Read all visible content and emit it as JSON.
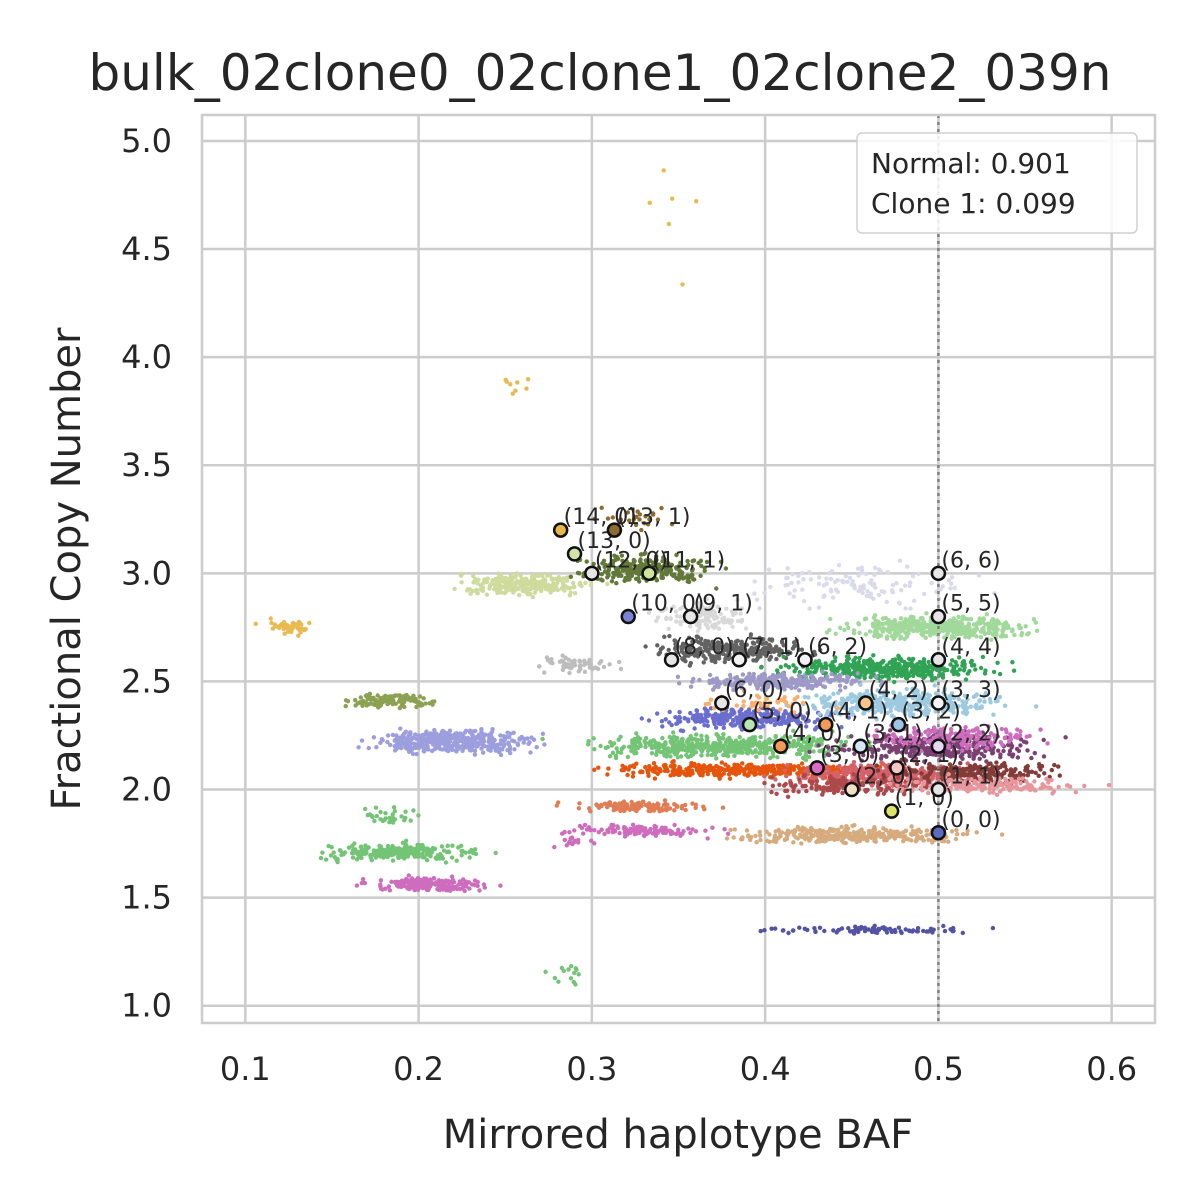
{
  "chart_data": {
    "type": "scatter",
    "title": "bulk_02clone0_02clone1_02clone2_039n",
    "xlabel": "Mirrored haplotype BAF",
    "ylabel": "Fractional Copy Number",
    "xlim": [
      0.075,
      0.625
    ],
    "ylim": [
      0.92,
      5.12
    ],
    "x_ticks": [
      0.1,
      0.2,
      0.3,
      0.4,
      0.5,
      0.6
    ],
    "x_tick_labels": [
      "0.1",
      "0.2",
      "0.3",
      "0.4",
      "0.5",
      "0.6"
    ],
    "y_ticks": [
      1.0,
      1.5,
      2.0,
      2.5,
      3.0,
      3.5,
      4.0,
      4.5,
      5.0
    ],
    "y_tick_labels": [
      "1.0",
      "1.5",
      "2.0",
      "2.5",
      "3.0",
      "3.5",
      "4.0",
      "4.5",
      "5.0"
    ],
    "grid": true,
    "reference_line": {
      "x": 0.5,
      "style": "dotted",
      "color": "#808080"
    },
    "legend": {
      "position": "top-right",
      "entries": [
        "Normal: 0.901",
        "Clone 1: 0.099"
      ]
    },
    "clusters": [
      {
        "color": "#e7ba52",
        "center": [
          0.125,
          2.75
        ],
        "spread": [
          0.012,
          0.03
        ],
        "n": 40
      },
      {
        "color": "#e7ba52",
        "center": [
          0.255,
          3.88
        ],
        "spread": [
          0.006,
          0.04
        ],
        "n": 8
      },
      {
        "color": "#e7ba52",
        "center": [
          0.36,
          4.6
        ],
        "spread": [
          0.025,
          0.25
        ],
        "n": 6
      },
      {
        "color": "#9c9ede",
        "center": [
          0.22,
          2.22
        ],
        "spread": [
          0.035,
          0.04
        ],
        "n": 420
      },
      {
        "color": "#8ca252",
        "center": [
          0.185,
          2.41
        ],
        "spread": [
          0.018,
          0.03
        ],
        "n": 110
      },
      {
        "color": "#74c476",
        "center": [
          0.19,
          1.71
        ],
        "spread": [
          0.035,
          0.03
        ],
        "n": 240
      },
      {
        "color": "#74c476",
        "center": [
          0.185,
          1.88
        ],
        "spread": [
          0.012,
          0.03
        ],
        "n": 30
      },
      {
        "color": "#ce6dbd",
        "center": [
          0.205,
          1.56
        ],
        "spread": [
          0.025,
          0.025
        ],
        "n": 200
      },
      {
        "color": "#cedb9c",
        "center": [
          0.26,
          2.95
        ],
        "spread": [
          0.03,
          0.04
        ],
        "n": 260
      },
      {
        "color": "#637939",
        "center": [
          0.33,
          3.02
        ],
        "spread": [
          0.03,
          0.05
        ],
        "n": 260
      },
      {
        "color": "#8c6d31",
        "center": [
          0.325,
          3.25
        ],
        "spread": [
          0.02,
          0.04
        ],
        "n": 25
      },
      {
        "color": "#bdbdbd",
        "center": [
          0.29,
          2.58
        ],
        "spread": [
          0.015,
          0.03
        ],
        "n": 60
      },
      {
        "color": "#d9d9d9",
        "center": [
          0.365,
          2.8
        ],
        "spread": [
          0.02,
          0.05
        ],
        "n": 120
      },
      {
        "color": "#636363",
        "center": [
          0.38,
          2.65
        ],
        "spread": [
          0.035,
          0.05
        ],
        "n": 280
      },
      {
        "color": "#dadaeb",
        "center": [
          0.46,
          2.95
        ],
        "spread": [
          0.05,
          0.08
        ],
        "n": 120
      },
      {
        "color": "#a1d99b",
        "center": [
          0.5,
          2.75
        ],
        "spread": [
          0.04,
          0.04
        ],
        "n": 420
      },
      {
        "color": "#31a354",
        "center": [
          0.47,
          2.56
        ],
        "spread": [
          0.045,
          0.04
        ],
        "n": 420
      },
      {
        "color": "#9e9ac8",
        "center": [
          0.41,
          2.5
        ],
        "spread": [
          0.04,
          0.03
        ],
        "n": 250
      },
      {
        "color": "#6b6ecf",
        "center": [
          0.39,
          2.33
        ],
        "spread": [
          0.04,
          0.04
        ],
        "n": 300
      },
      {
        "color": "#9ecae1",
        "center": [
          0.48,
          2.4
        ],
        "spread": [
          0.045,
          0.05
        ],
        "n": 380
      },
      {
        "color": "#fdae6b",
        "center": [
          0.4,
          2.4
        ],
        "spread": [
          0.03,
          0.04
        ],
        "n": 40
      },
      {
        "color": "#74c476",
        "center": [
          0.38,
          2.2
        ],
        "spread": [
          0.06,
          0.04
        ],
        "n": 520
      },
      {
        "color": "#7b4173",
        "center": [
          0.5,
          2.2
        ],
        "spread": [
          0.045,
          0.05
        ],
        "n": 360
      },
      {
        "color": "#ce6dbd",
        "center": [
          0.51,
          2.24
        ],
        "spread": [
          0.035,
          0.04
        ],
        "n": 160
      },
      {
        "color": "#e6550d",
        "center": [
          0.39,
          2.09
        ],
        "spread": [
          0.06,
          0.025
        ],
        "n": 360
      },
      {
        "color": "#d6616b",
        "center": [
          0.47,
          2.07
        ],
        "spread": [
          0.045,
          0.04
        ],
        "n": 360
      },
      {
        "color": "#843c39",
        "center": [
          0.52,
          2.08
        ],
        "spread": [
          0.04,
          0.04
        ],
        "n": 220
      },
      {
        "color": "#ad494a",
        "center": [
          0.45,
          2.02
        ],
        "spread": [
          0.035,
          0.035
        ],
        "n": 160
      },
      {
        "color": "#e07d54",
        "center": [
          0.325,
          1.92
        ],
        "spread": [
          0.03,
          0.02
        ],
        "n": 130
      },
      {
        "color": "#e7969c",
        "center": [
          0.525,
          2.02
        ],
        "spread": [
          0.045,
          0.03
        ],
        "n": 180
      },
      {
        "color": "#d6ab7e",
        "center": [
          0.45,
          1.79
        ],
        "spread": [
          0.055,
          0.03
        ],
        "n": 320
      },
      {
        "color": "#ce6dbd",
        "center": [
          0.325,
          1.81
        ],
        "spread": [
          0.03,
          0.02
        ],
        "n": 120
      },
      {
        "color": "#ce6dbd",
        "center": [
          0.29,
          1.76
        ],
        "spread": [
          0.01,
          0.02
        ],
        "n": 14
      },
      {
        "color": "#5254a3",
        "center": [
          0.46,
          1.35
        ],
        "spread": [
          0.045,
          0.012
        ],
        "n": 90
      },
      {
        "color": "#74c476",
        "center": [
          0.285,
          1.15
        ],
        "spread": [
          0.02,
          0.05
        ],
        "n": 14
      }
    ],
    "states": [
      {
        "label": "(0, 0)",
        "x": 0.5,
        "y": 1.8,
        "color": "#5b6bbf"
      },
      {
        "label": "(1, 0)",
        "x": 0.473,
        "y": 1.9,
        "color": "#dbe56a"
      },
      {
        "label": "(1, 1)",
        "x": 0.5,
        "y": 2.0,
        "color": "#e6e6e6"
      },
      {
        "label": "(2, 0)",
        "x": 0.45,
        "y": 2.0,
        "color": "#f2e0c4"
      },
      {
        "label": "(2, 1)",
        "x": 0.476,
        "y": 2.1,
        "color": "#f5c6c6"
      },
      {
        "label": "(2, 2)",
        "x": 0.5,
        "y": 2.2,
        "color": "#e5d7f0"
      },
      {
        "label": "(3, 0)",
        "x": 0.43,
        "y": 2.1,
        "color": "#d96cc4"
      },
      {
        "label": "(3, 1)",
        "x": 0.455,
        "y": 2.2,
        "color": "#d6e6f5"
      },
      {
        "label": "(3, 2)",
        "x": 0.477,
        "y": 2.3,
        "color": "#9dc3e6"
      },
      {
        "label": "(3, 3)",
        "x": 0.5,
        "y": 2.4,
        "color": "#f2f2f2"
      },
      {
        "label": "(4, 0)",
        "x": 0.409,
        "y": 2.2,
        "color": "#f39a5a"
      },
      {
        "label": "(4, 1)",
        "x": 0.435,
        "y": 2.3,
        "color": "#f39a5a"
      },
      {
        "label": "(4, 2)",
        "x": 0.458,
        "y": 2.4,
        "color": "#f9c48c"
      },
      {
        "label": "(4, 4)",
        "x": 0.5,
        "y": 2.6,
        "color": "#e6e6e6"
      },
      {
        "label": "(5, 0)",
        "x": 0.391,
        "y": 2.3,
        "color": "#b8e6b0"
      },
      {
        "label": "(5, 5)",
        "x": 0.5,
        "y": 2.8,
        "color": "#e6e6e6"
      },
      {
        "label": "(6, 0)",
        "x": 0.375,
        "y": 2.4,
        "color": "#e6e6e6"
      },
      {
        "label": "(6, 2)",
        "x": 0.423,
        "y": 2.6,
        "color": "#f2f2f2"
      },
      {
        "label": "(6, 6)",
        "x": 0.5,
        "y": 3.0,
        "color": "#e6e6e6"
      },
      {
        "label": "(7, 1)",
        "x": 0.385,
        "y": 2.6,
        "color": "#f2f2f2"
      },
      {
        "label": "(8, 0)",
        "x": 0.346,
        "y": 2.6,
        "color": "#e6e6e6"
      },
      {
        "label": "(9, 1)",
        "x": 0.357,
        "y": 2.8,
        "color": "#e6e6e6"
      },
      {
        "label": "(10, 0)",
        "x": 0.321,
        "y": 2.8,
        "color": "#7b83d6"
      },
      {
        "label": "(11, 1)",
        "x": 0.333,
        "y": 3.0,
        "color": "#cde59a"
      },
      {
        "label": "(12, 0)",
        "x": 0.3,
        "y": 3.0,
        "color": "#e6e6e6"
      },
      {
        "label": "(13, 0)",
        "x": 0.29,
        "y": 3.09,
        "color": "#d3e3a8"
      },
      {
        "label": "(13, 1)",
        "x": 0.313,
        "y": 3.2,
        "color": "#8c6d31"
      },
      {
        "label": "(14, 0)",
        "x": 0.282,
        "y": 3.2,
        "color": "#e8b64a"
      }
    ]
  }
}
